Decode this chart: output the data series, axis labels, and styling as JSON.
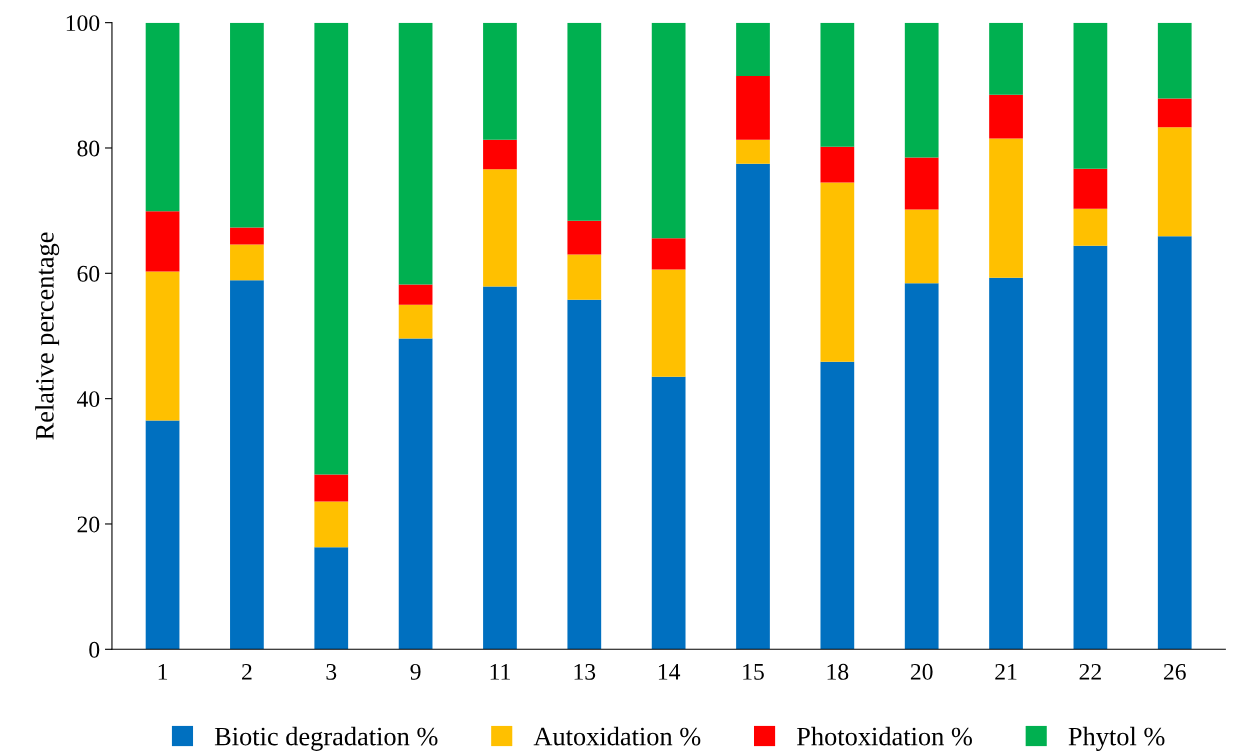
{
  "chart_data": {
    "type": "bar",
    "stacked": true,
    "ylabel": "Relative percentage",
    "categories": [
      "1",
      "2",
      "3",
      "9",
      "11",
      "13",
      "14",
      "15",
      "18",
      "20",
      "21",
      "22",
      "26"
    ],
    "series": [
      {
        "name": "Biotic degradation %",
        "color": "#0070c0",
        "values": [
          36.5,
          58.9,
          16.3,
          49.6,
          57.9,
          55.8,
          43.5,
          77.5,
          45.9,
          58.4,
          59.3,
          64.4,
          65.9
        ]
      },
      {
        "name": "Autoxidation %",
        "color": "#ffc000",
        "values": [
          23.8,
          5.7,
          7.3,
          5.4,
          18.7,
          7.2,
          17.1,
          3.8,
          28.6,
          11.8,
          22.2,
          5.9,
          17.4
        ]
      },
      {
        "name": "Photoxidation %",
        "color": "#ff0000",
        "values": [
          9.6,
          2.7,
          4.3,
          3.2,
          4.7,
          5.4,
          5.0,
          10.2,
          5.7,
          8.3,
          7.0,
          6.4,
          4.6
        ]
      },
      {
        "name": "Phytol %",
        "color": "#00b050",
        "values": [
          30.1,
          32.7,
          72.1,
          41.8,
          18.7,
          31.6,
          34.4,
          8.5,
          19.8,
          21.5,
          11.5,
          23.3,
          12.1
        ]
      }
    ],
    "ylim": [
      0,
      100
    ],
    "yticks": [
      0,
      20,
      40,
      60,
      80,
      100
    ],
    "grid": false,
    "legend": "bottom"
  }
}
